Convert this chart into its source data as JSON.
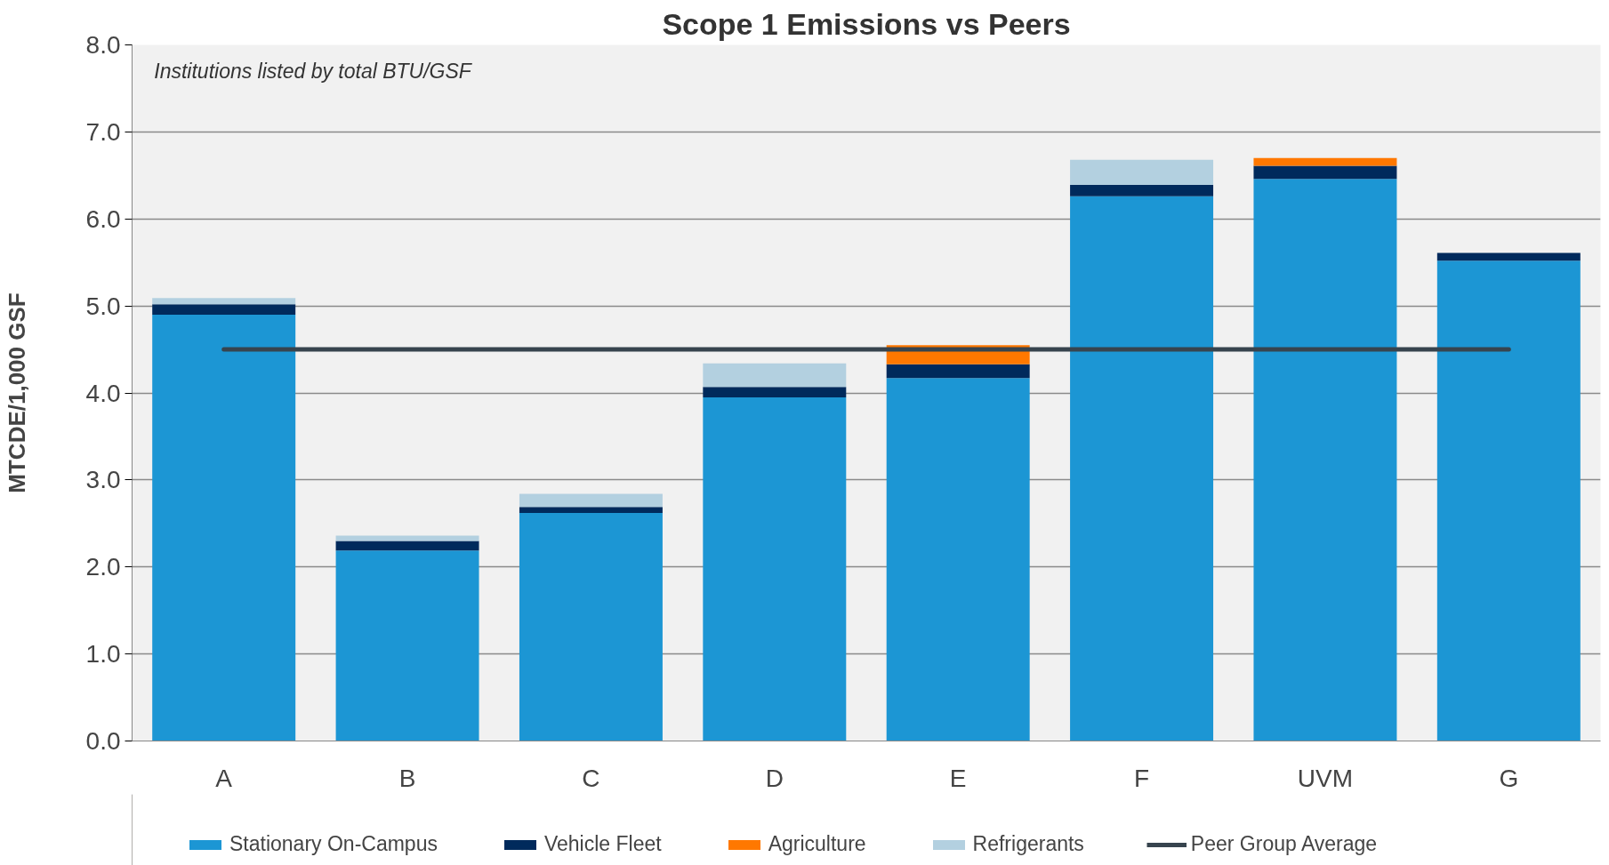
{
  "chart_data": {
    "type": "bar",
    "title": "Scope 1 Emissions vs Peers",
    "ylabel": "MTCDE/1,000 GSF",
    "categories": [
      "A",
      "B",
      "C",
      "D",
      "E",
      "F",
      "UVM",
      "G"
    ],
    "stacked": true,
    "series": [
      {
        "name": "Stationary On-Campus",
        "color": "#1c96d4",
        "values": [
          4.9,
          2.19,
          2.62,
          3.95,
          4.17,
          6.26,
          6.46,
          5.52
        ]
      },
      {
        "name": "Vehicle Fleet",
        "color": "#002a5c",
        "values": [
          0.12,
          0.11,
          0.07,
          0.12,
          0.16,
          0.13,
          0.15,
          0.09
        ]
      },
      {
        "name": "Agriculture",
        "color": "#ff7800",
        "values": [
          0,
          0,
          0,
          0,
          0.22,
          0,
          0.09,
          0
        ]
      },
      {
        "name": "Refrigerants",
        "color": "#b3d0e0",
        "values": [
          0.07,
          0.06,
          0.15,
          0.27,
          0,
          0.29,
          0,
          0
        ]
      }
    ],
    "ref_lines": [
      {
        "axis": "y",
        "value": 4.5,
        "label": "Peer Group Average",
        "color": "#37444e"
      }
    ],
    "annotations": [
      "Institutions listed by total BTU/GSF"
    ],
    "ylim": [
      0,
      8
    ],
    "yticks": [
      {
        "value": 0,
        "label": "0.0"
      },
      {
        "value": 1,
        "label": "1.0"
      },
      {
        "value": 2,
        "label": "2.0"
      },
      {
        "value": 3,
        "label": "3.0"
      },
      {
        "value": 4,
        "label": "4.0"
      },
      {
        "value": 5,
        "label": "5.0"
      },
      {
        "value": 6,
        "label": "6.0"
      },
      {
        "value": 7,
        "label": "7.0"
      },
      {
        "value": 8,
        "label": "8.0"
      }
    ],
    "grid": "y",
    "legend": "bottom"
  }
}
